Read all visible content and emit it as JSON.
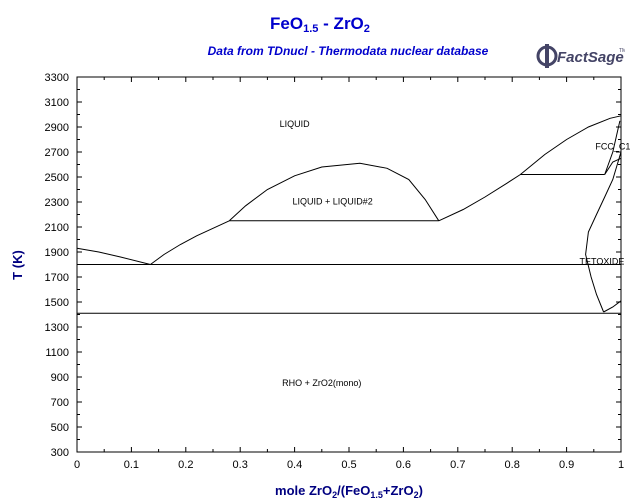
{
  "header": {
    "title_main": "FeO",
    "title_sub1": "1.5",
    "title_rest": " - ZrO",
    "title_sub2": "2",
    "subtitle": "Data from TDnucl - Thermodata nuclear database",
    "logo_text": "FactSage",
    "logo_tm": "TM"
  },
  "colors": {
    "title": "#0000cc",
    "axis_label": "#000080",
    "line": "#000000"
  },
  "chart_data": {
    "type": "line",
    "title": "FeO1.5 - ZrO2",
    "subtitle": "Data from TDnucl - Thermodata nuclear database",
    "xlabel": "mole ZrO2/(FeO1.5+ZrO2)",
    "ylabel": "T (K)",
    "xlim": [
      0,
      1
    ],
    "ylim": [
      300,
      3300
    ],
    "xticks": [
      0,
      0.1,
      0.2,
      0.3,
      0.4,
      0.5,
      0.6,
      0.7,
      0.8,
      0.9,
      1
    ],
    "yticks": [
      300,
      500,
      700,
      900,
      1100,
      1300,
      1500,
      1700,
      1900,
      2100,
      2300,
      2500,
      2700,
      2900,
      3100,
      3300
    ],
    "xtick_labels": [
      "0",
      "0.1",
      "0.2",
      "0.3",
      "0.4",
      "0.5",
      "0.6",
      "0.7",
      "0.8",
      "0.9",
      "1"
    ],
    "ytick_labels": [
      "300",
      "500",
      "700",
      "900",
      "1100",
      "1300",
      "1500",
      "1700",
      "1900",
      "2100",
      "2300",
      "2500",
      "2700",
      "2900",
      "3100",
      "3300"
    ],
    "series": [
      {
        "points": [
          [
            0,
            1930
          ],
          [
            0.04,
            1900
          ],
          [
            0.08,
            1860
          ],
          [
            0.135,
            1800
          ]
        ]
      },
      {
        "points": [
          [
            0.135,
            1800
          ],
          [
            0.16,
            1880
          ],
          [
            0.19,
            1960
          ],
          [
            0.22,
            2030
          ],
          [
            0.25,
            2090
          ],
          [
            0.28,
            2150
          ]
        ]
      },
      {
        "points": [
          [
            0.28,
            2150
          ],
          [
            0.31,
            2270
          ],
          [
            0.35,
            2400
          ],
          [
            0.4,
            2510
          ],
          [
            0.45,
            2580
          ],
          [
            0.52,
            2610
          ],
          [
            0.57,
            2570
          ],
          [
            0.61,
            2480
          ],
          [
            0.64,
            2320
          ],
          [
            0.665,
            2150
          ]
        ]
      },
      {
        "points": [
          [
            0.665,
            2150
          ],
          [
            0.71,
            2240
          ],
          [
            0.75,
            2340
          ],
          [
            0.79,
            2450
          ],
          [
            0.815,
            2520
          ],
          [
            0.86,
            2680
          ],
          [
            0.9,
            2800
          ],
          [
            0.94,
            2900
          ],
          [
            0.98,
            2970
          ],
          [
            1.0,
            2990
          ]
        ]
      },
      {
        "points": [
          [
            0.28,
            2150
          ],
          [
            0.665,
            2150
          ]
        ]
      },
      {
        "points": [
          [
            0,
            1800
          ],
          [
            1,
            1800
          ]
        ]
      },
      {
        "points": [
          [
            0,
            1410
          ],
          [
            1,
            1410
          ]
        ]
      },
      {
        "points": [
          [
            0.815,
            2520
          ],
          [
            0.97,
            2520
          ]
        ]
      },
      {
        "points": [
          [
            0.97,
            2520
          ],
          [
            0.985,
            2700
          ],
          [
            0.998,
            2950
          ]
        ]
      },
      {
        "points": [
          [
            0.97,
            2520
          ],
          [
            0.985,
            2620
          ],
          [
            1.0,
            2650
          ]
        ]
      },
      {
        "points": [
          [
            1.0,
            2700
          ],
          [
            0.985,
            2480
          ],
          [
            0.97,
            2340
          ],
          [
            0.955,
            2200
          ],
          [
            0.94,
            2060
          ],
          [
            0.935,
            1880
          ],
          [
            0.945,
            1700
          ],
          [
            0.955,
            1560
          ],
          [
            0.968,
            1420
          ]
        ]
      },
      {
        "points": [
          [
            0.968,
            1420
          ],
          [
            0.985,
            1460
          ],
          [
            1.0,
            1510
          ]
        ]
      }
    ],
    "annotations": [
      {
        "text": "LIQUID",
        "x": 0.4,
        "y": 2900
      },
      {
        "text": "LIQUID + LIQUID#2",
        "x": 0.47,
        "y": 2280
      },
      {
        "text": "FCC_C1",
        "x": 0.985,
        "y": 2720
      },
      {
        "text": "TETOXIDE",
        "x": 0.965,
        "y": 1800
      },
      {
        "text": "RHO + ZrO2(mono)",
        "x": 0.45,
        "y": 830
      }
    ],
    "grid": false,
    "legend": "none"
  }
}
